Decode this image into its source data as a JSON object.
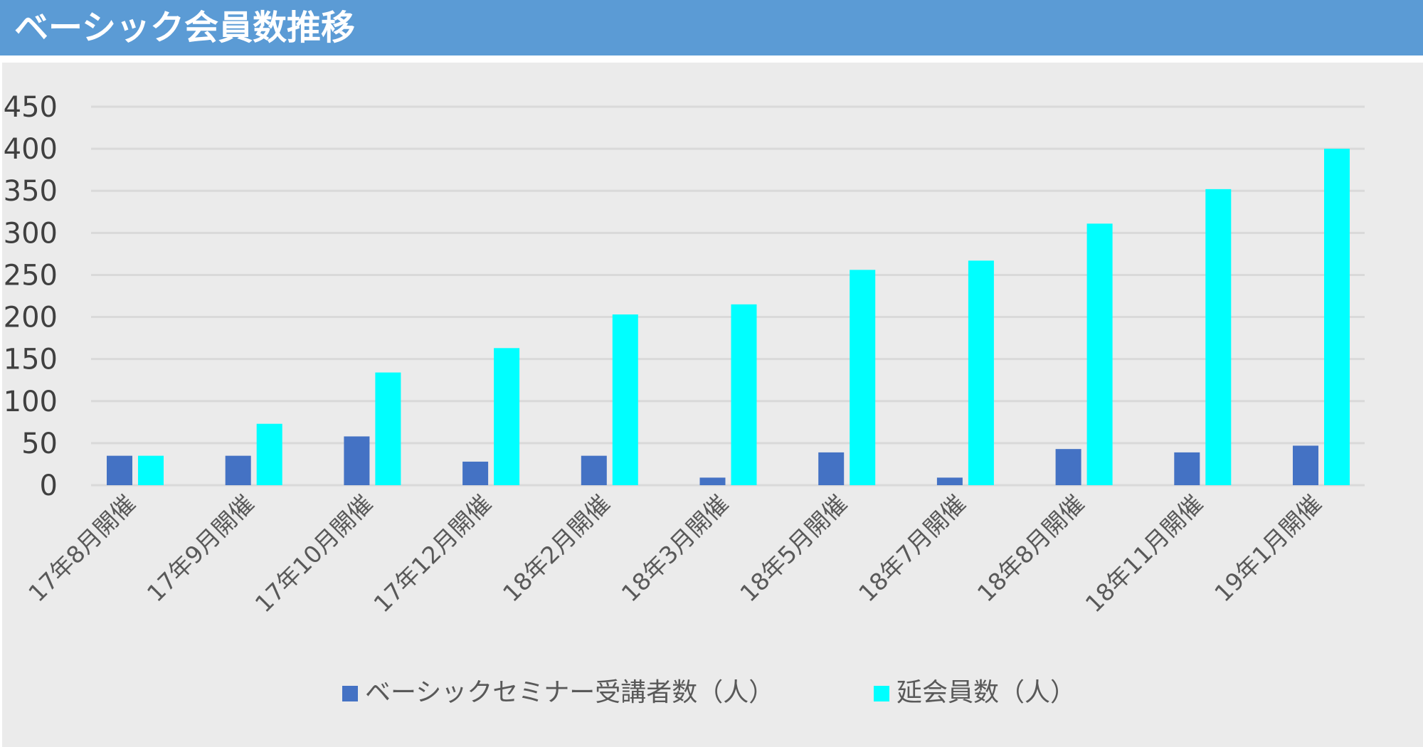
{
  "header": {
    "title": "ベーシック会員数推移"
  },
  "colors": {
    "header_bg": "#5b9bd5",
    "chart_bg": "#ebebeb",
    "gridline": "#d9d9d9"
  },
  "chart_data": {
    "type": "bar",
    "title": "",
    "xlabel": "",
    "ylabel": "",
    "ylim": [
      0,
      450
    ],
    "yticks": [
      0,
      50,
      100,
      150,
      200,
      250,
      300,
      350,
      400,
      450
    ],
    "grid": true,
    "legend_position": "bottom",
    "categories": [
      "17年8月開催",
      "17年9月開催",
      "17年10月開催",
      "17年12月開催",
      "18年2月開催",
      "18年3月開催",
      "18年5月開催",
      "18年7月開催",
      "18年8月開催",
      "18年11月開催",
      "19年1月開催"
    ],
    "series": [
      {
        "name": "ベーシックセミナー受講者数（人）",
        "color": "#4472c4",
        "values": [
          35,
          35,
          58,
          28,
          35,
          9,
          39,
          9,
          43,
          39,
          47
        ]
      },
      {
        "name": "延会員数（人）",
        "color": "#00ffff",
        "values": [
          35,
          73,
          134,
          163,
          203,
          215,
          256,
          267,
          311,
          352,
          400
        ]
      }
    ]
  }
}
